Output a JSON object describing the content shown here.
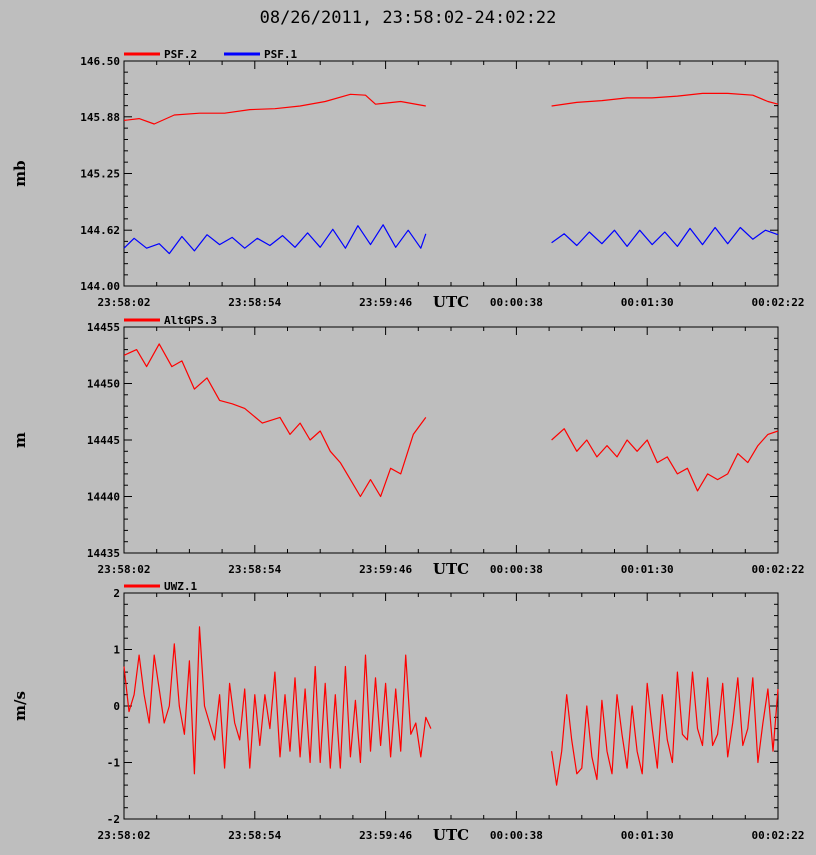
{
  "page_title": "08/26/2011, 23:58:02-24:02:22",
  "chart_data": [
    {
      "type": "line",
      "ylabel": "mb",
      "ylim": [
        144.0,
        146.5
      ],
      "yticks": [
        144.0,
        144.62,
        145.25,
        145.88,
        146.5
      ],
      "ytick_labels": [
        "144.00",
        "144.62",
        "145.25",
        "145.88",
        "146.50"
      ],
      "x_start": "23:58:02",
      "x_end": "00:02:22",
      "xlim_s": [
        0,
        260
      ],
      "xtick_seconds": [
        0,
        52,
        104,
        156,
        208,
        260
      ],
      "xtick_labels": [
        "23:58:02",
        "23:58:54",
        "23:59:46",
        "00:00:38",
        "00:01:30",
        "00:02:22"
      ],
      "xlabel": "UTC",
      "legend": [
        "PSF.2",
        "PSF.1"
      ],
      "series": [
        {
          "name": "PSF.2",
          "color": "#ff0000",
          "segments": [
            {
              "x": [
                0,
                6,
                12,
                20,
                30,
                40,
                50,
                60,
                70,
                80,
                90,
                96,
                100,
                110,
                120
              ],
              "y": [
                145.84,
                145.86,
                145.8,
                145.9,
                145.92,
                145.92,
                145.96,
                145.97,
                146.0,
                146.05,
                146.13,
                146.12,
                146.02,
                146.05,
                146.0
              ]
            },
            {
              "x": [
                170,
                180,
                190,
                200,
                210,
                220,
                230,
                240,
                250,
                256,
                260
              ],
              "y": [
                146.0,
                146.04,
                146.06,
                146.09,
                146.09,
                146.11,
                146.14,
                146.14,
                146.12,
                146.05,
                146.02
              ]
            }
          ]
        },
        {
          "name": "PSF.1",
          "color": "#0000ff",
          "segments": [
            {
              "x": [
                0,
                4,
                9,
                14,
                18,
                23,
                28,
                33,
                38,
                43,
                48,
                53,
                58,
                63,
                68,
                73,
                78,
                83,
                88,
                93,
                98,
                103,
                108,
                113,
                118,
                120
              ],
              "y": [
                144.42,
                144.53,
                144.42,
                144.47,
                144.36,
                144.55,
                144.39,
                144.57,
                144.46,
                144.54,
                144.42,
                144.53,
                144.45,
                144.56,
                144.43,
                144.59,
                144.43,
                144.63,
                144.42,
                144.67,
                144.46,
                144.68,
                144.43,
                144.62,
                144.42,
                144.58
              ]
            },
            {
              "x": [
                170,
                175,
                180,
                185,
                190,
                195,
                200,
                205,
                210,
                215,
                220,
                225,
                230,
                235,
                240,
                245,
                250,
                255,
                260
              ],
              "y": [
                144.48,
                144.58,
                144.45,
                144.6,
                144.47,
                144.62,
                144.44,
                144.62,
                144.46,
                144.6,
                144.44,
                144.64,
                144.46,
                144.65,
                144.47,
                144.65,
                144.52,
                144.62,
                144.57
              ]
            }
          ]
        }
      ]
    },
    {
      "type": "line",
      "ylabel": "m",
      "ylim": [
        14435,
        14455
      ],
      "yticks": [
        14435,
        14440,
        14445,
        14450,
        14455
      ],
      "ytick_labels": [
        "14435",
        "14440",
        "14445",
        "14450",
        "14455"
      ],
      "x_start": "23:58:02",
      "x_end": "00:02:22",
      "xlim_s": [
        0,
        260
      ],
      "xtick_seconds": [
        0,
        52,
        104,
        156,
        208,
        260
      ],
      "xtick_labels": [
        "23:58:02",
        "23:58:54",
        "23:59:46",
        "00:00:38",
        "00:01:30",
        "00:02:22"
      ],
      "xlabel": "UTC",
      "legend": [
        "AltGPS.3"
      ],
      "series": [
        {
          "name": "AltGPS.3",
          "color": "#ff0000",
          "segments": [
            {
              "x": [
                0,
                5,
                9,
                14,
                19,
                23,
                28,
                33,
                38,
                43,
                48,
                55,
                62,
                66,
                70,
                74,
                78,
                82,
                86,
                90,
                94,
                98,
                102,
                106,
                110,
                115,
                120
              ],
              "y": [
                14452.5,
                14453.0,
                14451.5,
                14453.5,
                14451.5,
                14452.0,
                14449.5,
                14450.5,
                14448.5,
                14448.2,
                14447.8,
                14446.5,
                14447.0,
                14445.5,
                14446.5,
                14445.0,
                14445.8,
                14444.0,
                14443.0,
                14441.5,
                14440.0,
                14441.5,
                14440.0,
                14442.5,
                14442.0,
                14445.5,
                14447.0
              ]
            },
            {
              "x": [
                170,
                175,
                180,
                184,
                188,
                192,
                196,
                200,
                204,
                208,
                212,
                216,
                220,
                224,
                228,
                232,
                236,
                240,
                244,
                248,
                252,
                256,
                260
              ],
              "y": [
                14445.0,
                14446.0,
                14444.0,
                14445.0,
                14443.5,
                14444.5,
                14443.5,
                14445.0,
                14444.0,
                14445.0,
                14443.0,
                14443.5,
                14442.0,
                14442.5,
                14440.5,
                14442.0,
                14441.5,
                14442.0,
                14443.8,
                14443.0,
                14444.5,
                14445.5,
                14445.8
              ]
            }
          ]
        }
      ]
    },
    {
      "type": "line",
      "ylabel": "m/s",
      "ylim": [
        -2,
        2
      ],
      "yticks": [
        -2,
        -1,
        0,
        1,
        2
      ],
      "ytick_labels": [
        "-2",
        "-1",
        "0",
        "1",
        "2"
      ],
      "x_start": "23:58:02",
      "x_end": "00:02:22",
      "xlim_s": [
        0,
        260
      ],
      "xtick_seconds": [
        0,
        52,
        104,
        156,
        208,
        260
      ],
      "xtick_labels": [
        "23:58:02",
        "23:58:54",
        "23:59:46",
        "00:00:38",
        "00:01:30",
        "00:02:22"
      ],
      "xlabel": "UTC",
      "legend": [
        "UWZ.1"
      ],
      "series": [
        {
          "name": "UWZ.1",
          "color": "#ff0000",
          "segments": [
            {
              "x": [
                0,
                2,
                4,
                6,
                8,
                10,
                12,
                14,
                16,
                18,
                20,
                22,
                24,
                26,
                28,
                30,
                32,
                34,
                36,
                38,
                40,
                42,
                44,
                46,
                48,
                50,
                52,
                54,
                56,
                58,
                60,
                62,
                64,
                66,
                68,
                70,
                72,
                74,
                76,
                78,
                80,
                82,
                84,
                86,
                88,
                90,
                92,
                94,
                96,
                98,
                100,
                102,
                104,
                106,
                108,
                110,
                112,
                114,
                116,
                118,
                120,
                122
              ],
              "y": [
                0.7,
                -0.1,
                0.2,
                0.9,
                0.2,
                -0.3,
                0.9,
                0.3,
                -0.3,
                0.0,
                1.1,
                0.0,
                -0.5,
                0.8,
                -1.2,
                1.4,
                0.0,
                -0.3,
                -0.6,
                0.2,
                -1.1,
                0.4,
                -0.3,
                -0.6,
                0.3,
                -1.1,
                0.2,
                -0.7,
                0.2,
                -0.4,
                0.6,
                -0.9,
                0.2,
                -0.8,
                0.5,
                -0.9,
                0.3,
                -1.0,
                0.7,
                -1.0,
                0.4,
                -1.1,
                0.2,
                -1.1,
                0.7,
                -0.9,
                0.1,
                -1.0,
                0.9,
                -0.8,
                0.5,
                -0.7,
                0.4,
                -0.9,
                0.3,
                -0.8,
                0.9,
                -0.5,
                -0.3,
                -0.9,
                -0.2,
                -0.4
              ]
            },
            {
              "x": [
                170,
                172,
                174,
                176,
                178,
                180,
                182,
                184,
                186,
                188,
                190,
                192,
                194,
                196,
                198,
                200,
                202,
                204,
                206,
                208,
                210,
                212,
                214,
                216,
                218,
                220,
                222,
                224,
                226,
                228,
                230,
                232,
                234,
                236,
                238,
                240,
                242,
                244,
                246,
                248,
                250,
                252,
                254,
                256,
                258,
                260
              ],
              "y": [
                -0.8,
                -1.4,
                -0.8,
                0.2,
                -0.6,
                -1.2,
                -1.1,
                0.0,
                -0.9,
                -1.3,
                0.1,
                -0.8,
                -1.2,
                0.2,
                -0.5,
                -1.1,
                0.0,
                -0.8,
                -1.2,
                0.4,
                -0.4,
                -1.1,
                0.2,
                -0.6,
                -1.0,
                0.6,
                -0.5,
                -0.6,
                0.6,
                -0.4,
                -0.7,
                0.5,
                -0.7,
                -0.5,
                0.4,
                -0.9,
                -0.3,
                0.5,
                -0.7,
                -0.4,
                0.5,
                -1.0,
                -0.3,
                0.3,
                -0.8,
                0.3
              ]
            }
          ]
        }
      ]
    }
  ]
}
